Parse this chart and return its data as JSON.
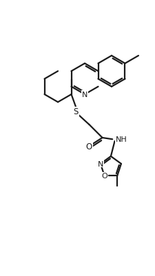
{
  "bg_color": "#ffffff",
  "line_color": "#1a1a1a",
  "line_width": 1.6,
  "figsize": [
    2.25,
    4.02
  ],
  "dpi": 100,
  "xlim": [
    0,
    10
  ],
  "ylim": [
    0,
    17.8
  ]
}
